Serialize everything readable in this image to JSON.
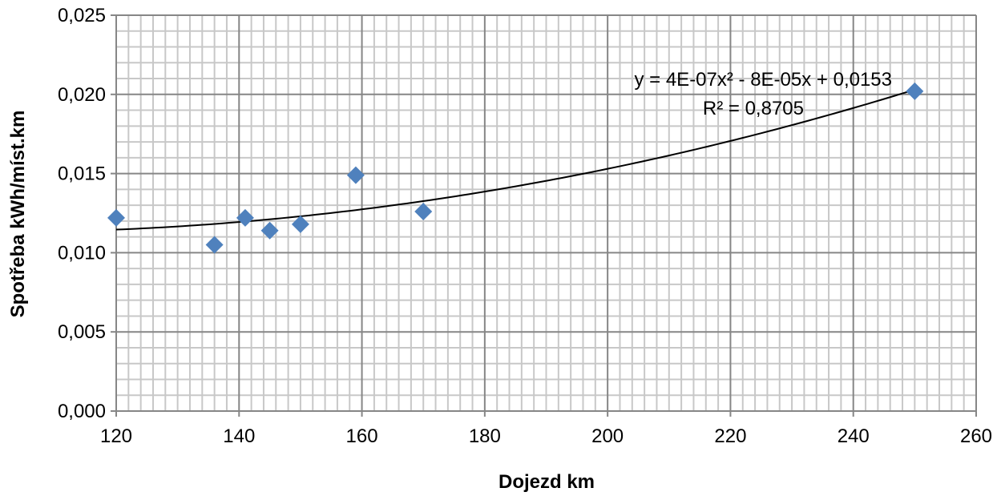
{
  "chart_data": {
    "type": "scatter",
    "title": "",
    "xlabel": "Dojezd km",
    "ylabel": "Spotřeba kWh/míst.km",
    "xlim": [
      120,
      260
    ],
    "ylim": [
      0,
      0.025
    ],
    "x_ticks": [
      120,
      140,
      160,
      180,
      200,
      220,
      240,
      260
    ],
    "x_tick_labels": [
      "120",
      "140",
      "160",
      "180",
      "200",
      "220",
      "240",
      "260"
    ],
    "y_ticks": [
      0,
      0.005,
      0.01,
      0.015,
      0.02,
      0.025
    ],
    "y_tick_labels": [
      "0,000",
      "0,005",
      "0,010",
      "0,015",
      "0,020",
      "0,025"
    ],
    "grid": true,
    "minor_grid": true,
    "marker_color": "#4F81BD",
    "series": [
      {
        "x": [
          120,
          136,
          141,
          145,
          150,
          159,
          170,
          250
        ],
        "y": [
          0.0122,
          0.0105,
          0.0122,
          0.0114,
          0.0118,
          0.0149,
          0.0126,
          0.0202
        ]
      }
    ],
    "trendline": {
      "type": "polynomial",
      "coefficients": [
        4e-07,
        -8e-05,
        0.0153
      ],
      "x_range": [
        120,
        250
      ],
      "equation_text": "y = 4E-07x² - 8E-05x + 0,0153",
      "r2_text": "R² = 0,8705"
    }
  }
}
